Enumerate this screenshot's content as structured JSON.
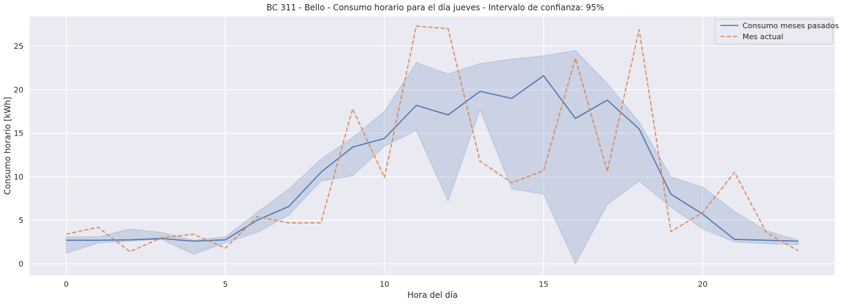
{
  "chart_data": {
    "type": "line",
    "title": "BC 311 - Bello - Consumo horario para el día jueves - Intervalo de confianza: 95%",
    "xlabel": "Hora del día",
    "ylabel": "Consumo horario [kWh]",
    "xlim": [
      -1.15,
      24.15
    ],
    "ylim": [
      -1.3,
      28.4
    ],
    "xticks": [
      0,
      5,
      10,
      15,
      20
    ],
    "yticks": [
      0,
      5,
      10,
      15,
      20,
      25
    ],
    "grid": true,
    "legend_position": "top-right",
    "x": [
      0,
      1,
      2,
      3,
      4,
      5,
      6,
      7,
      8,
      9,
      10,
      11,
      12,
      13,
      14,
      15,
      16,
      17,
      18,
      19,
      20,
      21,
      22,
      23
    ],
    "series": [
      {
        "name": "Consumo meses pasados",
        "color": "#4c72b0",
        "style": "solid",
        "values": [
          2.7,
          2.7,
          2.75,
          2.9,
          2.6,
          2.75,
          5.0,
          6.6,
          10.5,
          13.4,
          14.4,
          18.2,
          17.1,
          19.8,
          19.0,
          21.6,
          16.7,
          18.8,
          15.5,
          8.0,
          5.7,
          2.8,
          2.7,
          2.6
        ],
        "ci_lower": [
          1.2,
          2.4,
          2.6,
          2.8,
          1.1,
          2.4,
          3.6,
          5.6,
          9.5,
          10.1,
          13.5,
          15.3,
          7.2,
          17.7,
          8.6,
          8.0,
          0.0,
          6.8,
          9.5,
          6.5,
          4.0,
          2.5,
          2.3,
          2.2
        ],
        "ci_upper": [
          3.1,
          3.1,
          4.0,
          3.6,
          2.7,
          3.1,
          5.9,
          8.6,
          12.0,
          14.5,
          17.5,
          23.1,
          21.8,
          23.0,
          23.5,
          23.9,
          24.5,
          20.7,
          16.3,
          10.0,
          8.8,
          6.0,
          3.8,
          2.7
        ]
      },
      {
        "name": "Mes actual",
        "color": "#dd8452",
        "style": "dashed",
        "values": [
          3.4,
          4.2,
          1.4,
          3.0,
          3.4,
          1.8,
          5.4,
          4.7,
          4.7,
          17.8,
          9.9,
          27.3,
          27.0,
          11.8,
          9.3,
          10.7,
          23.6,
          10.6,
          26.9,
          3.7,
          5.9,
          10.5,
          3.6,
          1.5
        ]
      }
    ]
  }
}
